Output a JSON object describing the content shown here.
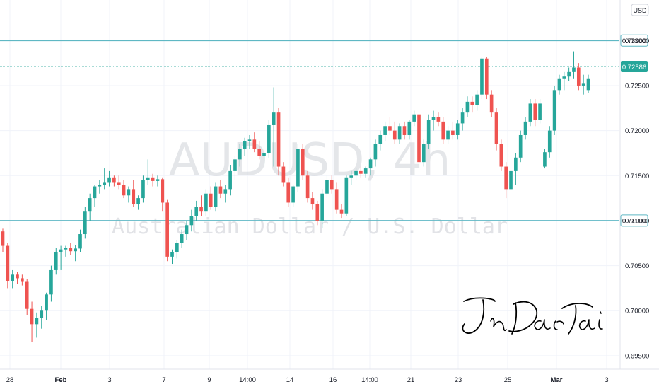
{
  "chart_data": {
    "type": "candlestick",
    "symbol_watermark": "AUDUSD, 4h",
    "name_watermark": "Australian Dollar / U.S. Dollar",
    "currency_label": "USD",
    "signature_text": "JinDaoTai",
    "y_range": [
      0.6935,
      0.7345
    ],
    "y_ticks": [
      "0.73000",
      "0.72500",
      "0.72000",
      "0.71500",
      "0.71000",
      "0.70500",
      "0.70000",
      "0.69500"
    ],
    "x_ticks": [
      "28",
      "Feb",
      "3",
      "7",
      "9",
      "14:00",
      "14",
      "16",
      "14:00",
      "21",
      "23",
      "25",
      "Mar",
      "3"
    ],
    "current_price": "0.72586",
    "horizontal_levels": [
      {
        "value": 0.73,
        "label": "0.73000"
      },
      {
        "value": 0.71,
        "label": "0.71000"
      }
    ],
    "colors": {
      "up": "#26a69a",
      "down": "#ef5350",
      "level": "#5fb8c4",
      "grid": "#f0f3fa",
      "price_badge": "#26a69a"
    },
    "candles": [
      [
        0.7088,
        0.7091,
        0.7065,
        0.7072
      ],
      [
        0.7072,
        0.7075,
        0.7025,
        0.7033
      ],
      [
        0.7033,
        0.7045,
        0.7025,
        0.704
      ],
      [
        0.704,
        0.7043,
        0.703,
        0.7036
      ],
      [
        0.7036,
        0.704,
        0.7028,
        0.7032
      ],
      [
        0.7032,
        0.7035,
        0.6995,
        0.7002
      ],
      [
        0.7002,
        0.701,
        0.6965,
        0.6985
      ],
      [
        0.6985,
        0.6998,
        0.697,
        0.6992
      ],
      [
        0.6992,
        0.7005,
        0.698,
        0.7
      ],
      [
        0.7,
        0.702,
        0.699,
        0.7018
      ],
      [
        0.7018,
        0.705,
        0.701,
        0.7045
      ],
      [
        0.7045,
        0.707,
        0.704,
        0.7065
      ],
      [
        0.7065,
        0.7072,
        0.7045,
        0.7068
      ],
      [
        0.7068,
        0.7072,
        0.706,
        0.707
      ],
      [
        0.707,
        0.7075,
        0.7062,
        0.7066
      ],
      [
        0.7066,
        0.7073,
        0.7055,
        0.7069
      ],
      [
        0.7069,
        0.709,
        0.7065,
        0.7085
      ],
      [
        0.7085,
        0.7115,
        0.708,
        0.711
      ],
      [
        0.711,
        0.713,
        0.71,
        0.7125
      ],
      [
        0.7125,
        0.714,
        0.7115,
        0.7138
      ],
      [
        0.7138,
        0.7145,
        0.713,
        0.714
      ],
      [
        0.714,
        0.7158,
        0.7135,
        0.7142
      ],
      [
        0.7142,
        0.7155,
        0.7138,
        0.7148
      ],
      [
        0.7148,
        0.715,
        0.7138,
        0.7142
      ],
      [
        0.7142,
        0.715,
        0.7135,
        0.714
      ],
      [
        0.714,
        0.7145,
        0.7125,
        0.7128
      ],
      [
        0.7128,
        0.7138,
        0.712,
        0.7135
      ],
      [
        0.7135,
        0.7145,
        0.7115,
        0.7118
      ],
      [
        0.7118,
        0.7128,
        0.7112,
        0.7125
      ],
      [
        0.7125,
        0.715,
        0.712,
        0.7145
      ],
      [
        0.7145,
        0.7168,
        0.714,
        0.7148
      ],
      [
        0.7148,
        0.7152,
        0.7138,
        0.7144
      ],
      [
        0.7144,
        0.715,
        0.7138,
        0.7146
      ],
      [
        0.7146,
        0.7148,
        0.711,
        0.712
      ],
      [
        0.712,
        0.7123,
        0.7055,
        0.706
      ],
      [
        0.706,
        0.7068,
        0.7052,
        0.7065
      ],
      [
        0.7065,
        0.7078,
        0.7058,
        0.7075
      ],
      [
        0.7075,
        0.709,
        0.707,
        0.7085
      ],
      [
        0.7085,
        0.71,
        0.7078,
        0.7095
      ],
      [
        0.7095,
        0.7112,
        0.7088,
        0.7105
      ],
      [
        0.7105,
        0.7122,
        0.71,
        0.7115
      ],
      [
        0.7115,
        0.7128,
        0.7105,
        0.711
      ],
      [
        0.711,
        0.7135,
        0.7105,
        0.713
      ],
      [
        0.713,
        0.7138,
        0.7112,
        0.7115
      ],
      [
        0.7115,
        0.7142,
        0.711,
        0.7138
      ],
      [
        0.7138,
        0.7145,
        0.7125,
        0.713
      ],
      [
        0.713,
        0.714,
        0.712,
        0.7135
      ],
      [
        0.7135,
        0.7162,
        0.7128,
        0.7155
      ],
      [
        0.7155,
        0.7172,
        0.7145,
        0.7168
      ],
      [
        0.7168,
        0.7185,
        0.716,
        0.718
      ],
      [
        0.718,
        0.7192,
        0.7172,
        0.7188
      ],
      [
        0.7188,
        0.7195,
        0.718,
        0.719
      ],
      [
        0.719,
        0.7198,
        0.7176,
        0.718
      ],
      [
        0.718,
        0.7188,
        0.7168,
        0.7172
      ],
      [
        0.7172,
        0.7178,
        0.716,
        0.7175
      ],
      [
        0.7175,
        0.7212,
        0.717,
        0.7206
      ],
      [
        0.7206,
        0.7248,
        0.716,
        0.722
      ],
      [
        0.722,
        0.7225,
        0.715,
        0.716
      ],
      [
        0.716,
        0.7165,
        0.7138,
        0.7142
      ],
      [
        0.7142,
        0.7148,
        0.7115,
        0.712
      ],
      [
        0.712,
        0.714,
        0.7115,
        0.7138
      ],
      [
        0.7138,
        0.7185,
        0.7132,
        0.718
      ],
      [
        0.718,
        0.7185,
        0.7145,
        0.715
      ],
      [
        0.715,
        0.7155,
        0.712,
        0.7125
      ],
      [
        0.7125,
        0.7132,
        0.7112,
        0.7118
      ],
      [
        0.7118,
        0.7122,
        0.7095,
        0.71
      ],
      [
        0.71,
        0.7135,
        0.7092,
        0.713
      ],
      [
        0.713,
        0.715,
        0.7125,
        0.7145
      ],
      [
        0.7145,
        0.715,
        0.713,
        0.7135
      ],
      [
        0.7135,
        0.7142,
        0.7108,
        0.7112
      ],
      [
        0.7112,
        0.7118,
        0.7103,
        0.7108
      ],
      [
        0.7108,
        0.715,
        0.7105,
        0.7148
      ],
      [
        0.7148,
        0.7155,
        0.714,
        0.715
      ],
      [
        0.715,
        0.7158,
        0.7145,
        0.7155
      ],
      [
        0.7155,
        0.716,
        0.7148,
        0.7152
      ],
      [
        0.7152,
        0.716,
        0.7148,
        0.7158
      ],
      [
        0.7158,
        0.717,
        0.715,
        0.7168
      ],
      [
        0.7168,
        0.719,
        0.716,
        0.7185
      ],
      [
        0.7185,
        0.72,
        0.7178,
        0.7195
      ],
      [
        0.7195,
        0.721,
        0.7188,
        0.7205
      ],
      [
        0.7205,
        0.7215,
        0.7195,
        0.72
      ],
      [
        0.72,
        0.721,
        0.7185,
        0.719
      ],
      [
        0.719,
        0.7208,
        0.7185,
        0.7205
      ],
      [
        0.7205,
        0.721,
        0.719,
        0.7195
      ],
      [
        0.7195,
        0.7212,
        0.719,
        0.721
      ],
      [
        0.721,
        0.7222,
        0.7205,
        0.7218
      ],
      [
        0.7218,
        0.722,
        0.716,
        0.7165
      ],
      [
        0.7165,
        0.719,
        0.716,
        0.7185
      ],
      [
        0.7185,
        0.7218,
        0.718,
        0.7212
      ],
      [
        0.7212,
        0.7222,
        0.72,
        0.7215
      ],
      [
        0.7215,
        0.722,
        0.7205,
        0.721
      ],
      [
        0.721,
        0.7215,
        0.7185,
        0.719
      ],
      [
        0.719,
        0.7205,
        0.7185,
        0.72
      ],
      [
        0.72,
        0.721,
        0.719,
        0.7195
      ],
      [
        0.7195,
        0.7212,
        0.719,
        0.7208
      ],
      [
        0.7208,
        0.7225,
        0.72,
        0.722
      ],
      [
        0.722,
        0.7238,
        0.7215,
        0.7232
      ],
      [
        0.7232,
        0.7238,
        0.722,
        0.7228
      ],
      [
        0.7228,
        0.7245,
        0.7222,
        0.724
      ],
      [
        0.724,
        0.7282,
        0.7235,
        0.728
      ],
      [
        0.728,
        0.7282,
        0.7235,
        0.724
      ],
      [
        0.724,
        0.7245,
        0.7215,
        0.722
      ],
      [
        0.722,
        0.7225,
        0.7178,
        0.7185
      ],
      [
        0.7185,
        0.719,
        0.7155,
        0.716
      ],
      [
        0.716,
        0.7165,
        0.7125,
        0.7135
      ],
      [
        0.7135,
        0.7165,
        0.7095,
        0.7155
      ],
      [
        0.7155,
        0.7175,
        0.714,
        0.717
      ],
      [
        0.717,
        0.72,
        0.7165,
        0.7195
      ],
      [
        0.7195,
        0.7215,
        0.719,
        0.721
      ],
      [
        0.721,
        0.7235,
        0.7205,
        0.723
      ],
      [
        0.723,
        0.7235,
        0.7205,
        0.7212
      ],
      [
        0.7212,
        0.7235,
        0.7208,
        0.723
      ],
      [
        0.716,
        0.718,
        0.7158,
        0.7176
      ],
      [
        0.7176,
        0.7205,
        0.717,
        0.72
      ],
      [
        0.72,
        0.725,
        0.7195,
        0.7245
      ],
      [
        0.7245,
        0.7262,
        0.724,
        0.7258
      ],
      [
        0.7258,
        0.7265,
        0.7245,
        0.726
      ],
      [
        0.726,
        0.727,
        0.7255,
        0.7265
      ],
      [
        0.7265,
        0.7288,
        0.7258,
        0.727
      ],
      [
        0.727,
        0.7275,
        0.7245,
        0.725
      ],
      [
        0.725,
        0.7262,
        0.724,
        0.7252
      ],
      [
        0.7245,
        0.7262,
        0.7242,
        0.7258
      ]
    ]
  }
}
